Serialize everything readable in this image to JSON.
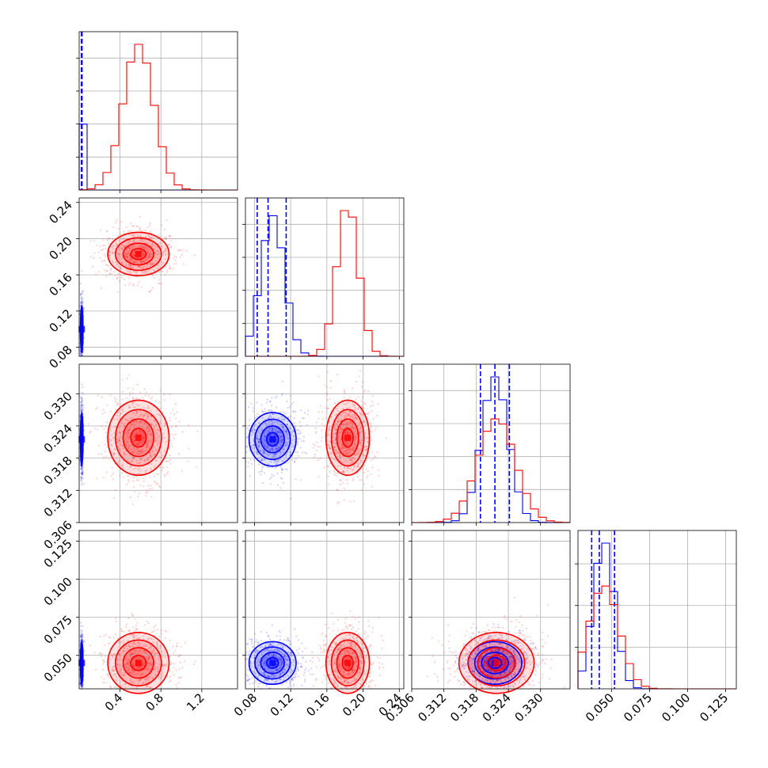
{
  "chart_data": {
    "type": "corner",
    "grid": true,
    "colors": {
      "run_blue": "#0000ff",
      "run_red": "#ff0000"
    },
    "series": [
      {
        "color": "#0000ff",
        "means": [
          0.025,
          0.1,
          0.3215,
          0.045
        ],
        "sigmas": [
          0.006,
          0.013,
          0.0025,
          0.007
        ],
        "corr_01": 0.0,
        "quantiles": [
          [
            0.022,
            0.025,
            0.028
          ],
          [
            0.083,
            0.095,
            0.115
          ],
          [
            0.3188,
            0.3215,
            0.3242
          ],
          [
            0.037,
            0.042,
            0.052
          ]
        ]
      },
      {
        "color": "#ff0000",
        "means": [
          0.58,
          0.183,
          0.3218,
          0.045
        ],
        "sigmas": [
          0.15,
          0.012,
          0.0035,
          0.01
        ],
        "corr_01": 0.15,
        "quantiles": null
      }
    ],
    "panels": [
      {
        "name": "p0",
        "xlim": [
          0.0,
          1.55
        ],
        "xticks": [
          0.4,
          0.8,
          1.2
        ],
        "xticklabels": [
          "0.4",
          "0.8",
          "1.2"
        ],
        "ylim": [
          0.08,
          0.245
        ],
        "yticks": [
          0.08,
          0.12,
          0.16,
          0.2,
          0.24
        ],
        "yticklabels": [
          "0.08",
          "0.12",
          "0.16",
          "0.20",
          "0.24"
        ],
        "diag_hist_yticks": 4
      },
      {
        "name": "p1",
        "xlim": [
          0.07,
          0.245
        ],
        "xticks": [
          0.08,
          0.12,
          0.16,
          0.2,
          0.24
        ],
        "xticklabels": [
          "0.08",
          "0.12",
          "0.16",
          "0.20",
          "0.24"
        ],
        "ylim": [
          0.306,
          0.335
        ],
        "yticks": [
          0.306,
          0.312,
          0.318,
          0.324,
          0.33
        ],
        "yticklabels": [
          "0.306",
          "0.312",
          "0.318",
          "0.324",
          "0.330"
        ],
        "diag_hist_yticks": 4
      },
      {
        "name": "p2",
        "xlim": [
          0.306,
          0.3355
        ],
        "xticks": [
          0.306,
          0.312,
          0.318,
          0.324,
          0.33
        ],
        "xticklabels": [
          "0.306",
          "0.312",
          "0.318",
          "0.324",
          "0.330"
        ],
        "ylim": [
          0.028,
          0.132
        ],
        "yticks": [
          0.05,
          0.075,
          0.1,
          0.125
        ],
        "yticklabels": [
          "0.050",
          "0.075",
          "0.100",
          "0.125"
        ],
        "diag_hist_yticks": 4
      },
      {
        "name": "p3",
        "xlim": [
          0.028,
          0.132
        ],
        "xticks": [
          0.05,
          0.075,
          0.1,
          0.125
        ],
        "xticklabels": [
          "0.050",
          "0.075",
          "0.100",
          "0.125"
        ],
        "ylim": null,
        "yticks": [],
        "yticklabels": [],
        "diag_hist_yticks": 3
      }
    ],
    "contour_levels_sigma": [
      0.5,
      1.0,
      1.5,
      2.0
    ],
    "hist_bins": 20,
    "title": "",
    "xlabel": "",
    "ylabel": ""
  }
}
